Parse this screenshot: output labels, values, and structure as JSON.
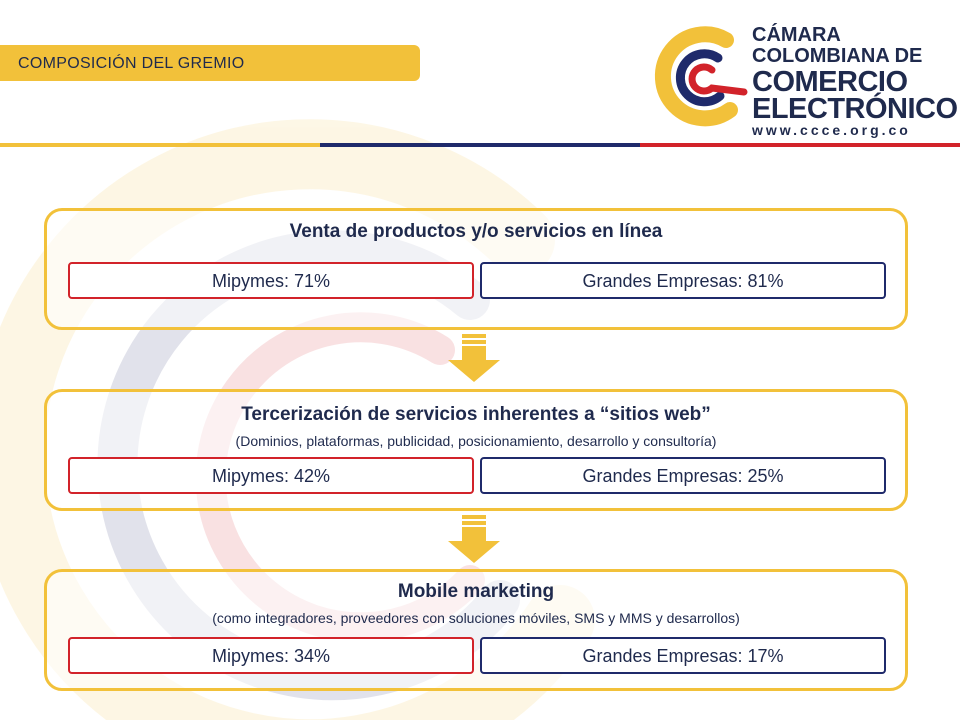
{
  "section_title": "COMPOSICIÓN DEL GREMIO",
  "logo": {
    "line1": "CÁMARA",
    "line2": "COLOMBIANA DE",
    "line3": "COMERCIO",
    "line4": "ELECTRÓNICO",
    "url": "www.ccce.org.co"
  },
  "panels": [
    {
      "title": "Venta de productos y/o servicios en línea",
      "subtitle": "",
      "mipymes": "Mipymes: 71%",
      "grandes": "Grandes Empresas: 81%"
    },
    {
      "title": "Tercerización de servicios inherentes a “sitios web”",
      "subtitle": "(Dominios, plataformas, publicidad, posicionamiento, desarrollo y consultoría)",
      "mipymes": "Mipymes: 42%",
      "grandes": "Grandes Empresas: 25%"
    },
    {
      "title": "Mobile marketing",
      "subtitle": "(como integradores, proveedores con soluciones móviles, SMS y MMS y desarrollos)",
      "mipymes": "Mipymes: 34%",
      "grandes": "Grandes Empresas: 17%"
    }
  ],
  "colors": {
    "yellow": "#f2c13a",
    "navy": "#1f2a6b",
    "red": "#d2232a",
    "text": "#1f2a4d"
  },
  "icons": [
    "logo-swirl-icon",
    "arrow-down-icon"
  ]
}
